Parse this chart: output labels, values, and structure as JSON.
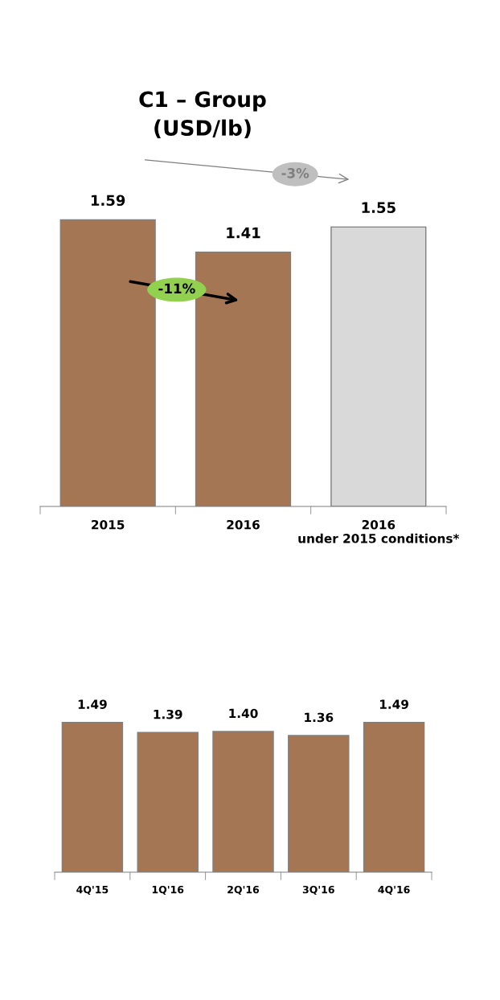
{
  "chart_data": [
    {
      "type": "bar",
      "title": "C1 – Group\n(USD/lb)",
      "categories": [
        "2015",
        "2016",
        "2016\nunder 2015 conditions*"
      ],
      "values": [
        1.59,
        1.41,
        1.55
      ],
      "value_labels": [
        "1.59",
        "1.41",
        "1.55"
      ],
      "colors": [
        "#a57654",
        "#a57654",
        "#d9d9d9"
      ],
      "data_labels": true,
      "annotations": [
        "-11%",
        "-3%"
      ]
    },
    {
      "type": "bar",
      "categories": [
        "4Q'15",
        "1Q'16",
        "2Q'16",
        "3Q'16",
        "4Q'16"
      ],
      "values": [
        1.49,
        1.39,
        1.4,
        1.36,
        1.49
      ],
      "value_labels": [
        "1.49",
        "1.39",
        "1.40",
        "1.36",
        "1.49"
      ],
      "colors": [
        "#a57654",
        "#a57654",
        "#a57654",
        "#a57654",
        "#a57654"
      ],
      "data_labels": true
    }
  ]
}
